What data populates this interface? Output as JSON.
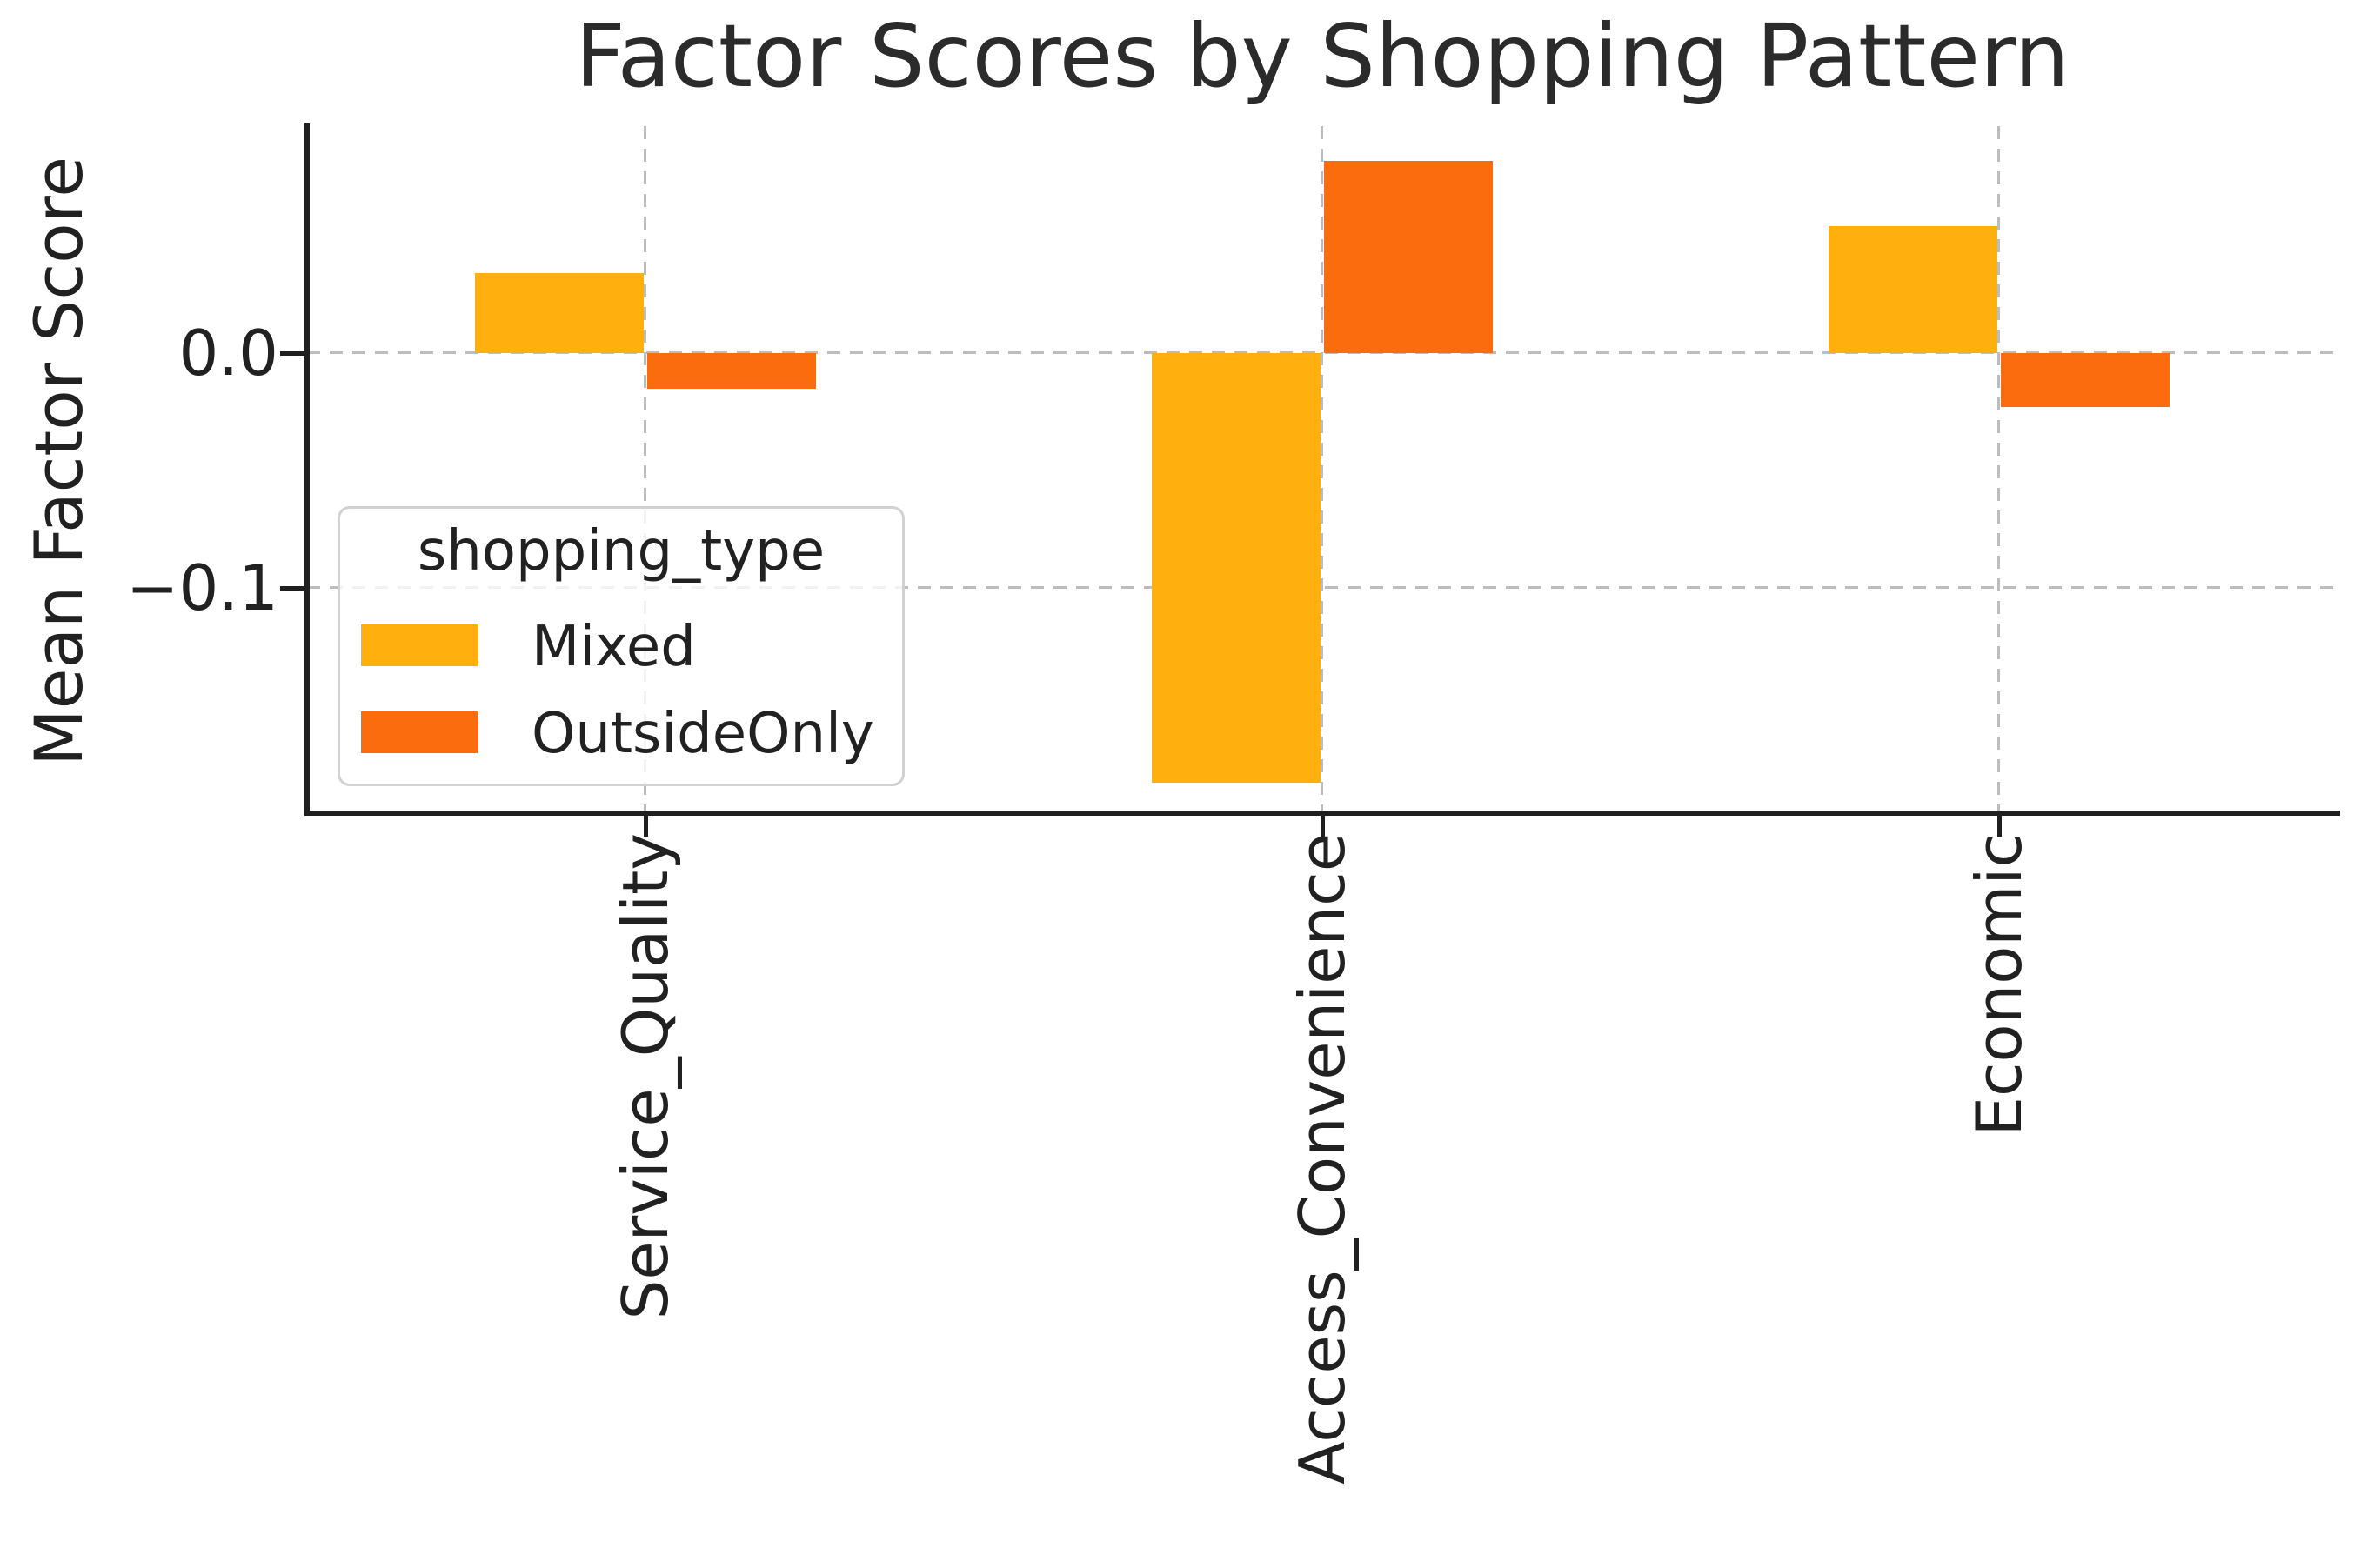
{
  "title": "Factor Scores by Shopping Pattern",
  "y_axis": {
    "label": "Mean Factor Score",
    "tick_labels": [
      "0.0",
      "−0.1"
    ],
    "tick_values": [
      0.0,
      -0.1
    ]
  },
  "x_axis": {
    "categories": [
      "Service_Quality",
      "Access_Convenience",
      "Economic"
    ]
  },
  "legend": {
    "title": "shopping_type",
    "items": [
      {
        "label": "Mixed",
        "color": "#ffb00e"
      },
      {
        "label": "OutsideOnly",
        "color": "#fb6c0e"
      }
    ]
  },
  "chart_data": {
    "type": "bar",
    "title": "Factor Scores by Shopping Pattern",
    "xlabel": "",
    "ylabel": "Mean Factor Score",
    "categories": [
      "Service_Quality",
      "Access_Convenience",
      "Economic"
    ],
    "series": [
      {
        "name": "Mixed",
        "color": "#ffb00e",
        "values": [
          0.034,
          -0.183,
          0.054
        ]
      },
      {
        "name": "OutsideOnly",
        "color": "#fb6c0e",
        "values": [
          -0.015,
          0.082,
          -0.023
        ]
      }
    ],
    "yticks": [
      0.0,
      -0.1
    ],
    "ylim": [
      -0.196,
      0.097
    ],
    "grid": "dashed, both axes, behind bars",
    "legend_position": "upper left inside",
    "bar_group_width": 0.5
  },
  "colors": {
    "grid": "#bdbdbd",
    "spine": "#1f1f1f",
    "text": "#212121",
    "legend_border": "#d2d2d2"
  }
}
